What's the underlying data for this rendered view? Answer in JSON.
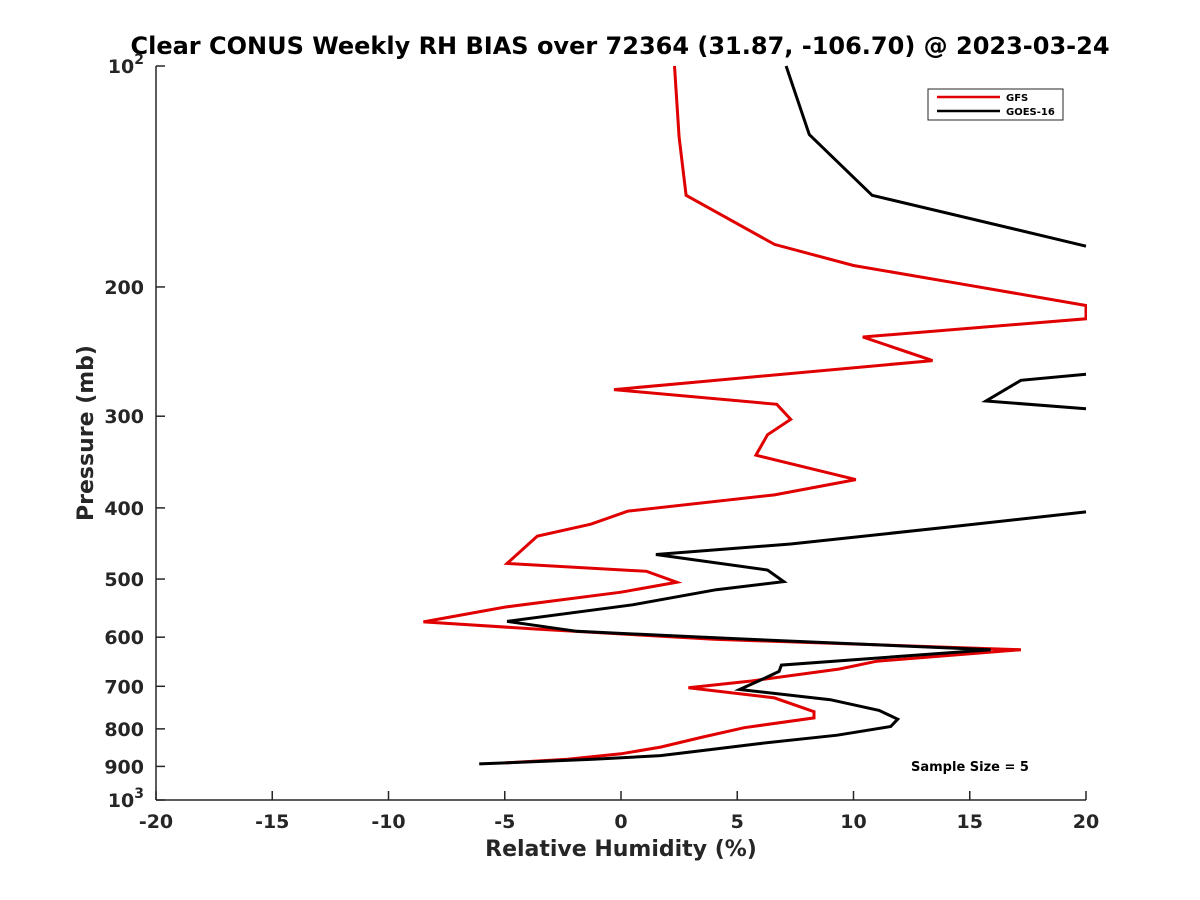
{
  "chart_data": {
    "type": "line",
    "title": "Clear CONUS Weekly RH BIAS over 72364 (31.87, -106.70) @ 2023-03-24",
    "xlabel": "Relative Humidity (%)",
    "ylabel": "Pressure (mb)",
    "xlim": [
      -20,
      20
    ],
    "ylim": [
      100,
      1000
    ],
    "y_scale": "log",
    "y_reversed": true,
    "x_ticks": [
      "-20",
      "-15",
      "-10",
      "-5",
      "0",
      "5",
      "10",
      "15",
      "20"
    ],
    "y_ticks": [
      {
        "value": 100,
        "base": "10",
        "exp": "2"
      },
      {
        "value": 200,
        "label": "200"
      },
      {
        "value": 300,
        "label": "300"
      },
      {
        "value": 400,
        "label": "400"
      },
      {
        "value": 500,
        "label": "500"
      },
      {
        "value": 600,
        "label": "600"
      },
      {
        "value": 700,
        "label": "700"
      },
      {
        "value": 800,
        "label": "800"
      },
      {
        "value": 900,
        "label": "900"
      },
      {
        "value": 1000,
        "base": "10",
        "exp": "3"
      }
    ],
    "grid": false,
    "legend_position": "top-right",
    "annotation": "Sample Size = 5",
    "series": [
      {
        "name": "GFS",
        "color": "#e00000",
        "points": [
          [
            2.3,
            100
          ],
          [
            2.5,
            125
          ],
          [
            2.8,
            150
          ],
          [
            6.6,
            175
          ],
          [
            10,
            187
          ],
          [
            14.6,
            198
          ],
          [
            20,
            212
          ],
          [
            20,
            221
          ],
          [
            10.4,
            234
          ],
          [
            13.4,
            252
          ],
          [
            -0.3,
            276
          ],
          [
            6.7,
            289
          ],
          [
            7.3,
            303
          ],
          [
            6.3,
            318
          ],
          [
            5.8,
            339
          ],
          [
            10.1,
            366
          ],
          [
            6.6,
            384
          ],
          [
            0.3,
            404
          ],
          [
            -1.3,
            421
          ],
          [
            -3.6,
            437
          ],
          [
            -4.9,
            476
          ],
          [
            1.1,
            488
          ],
          [
            2.4,
            505
          ],
          [
            0,
            521
          ],
          [
            -5,
            546
          ],
          [
            -8.5,
            572
          ],
          [
            -3.6,
            585
          ],
          [
            4,
            604
          ],
          [
            17.2,
            624
          ],
          [
            11,
            647
          ],
          [
            9.4,
            663
          ],
          [
            5.5,
            689
          ],
          [
            2.9,
            703
          ],
          [
            6.6,
            726
          ],
          [
            8.3,
            758
          ],
          [
            8.3,
            773
          ],
          [
            5.3,
            797
          ],
          [
            3.5,
            821
          ],
          [
            1.7,
            847
          ],
          [
            0,
            865
          ],
          [
            -2.3,
            880
          ],
          [
            -5,
            890
          ]
        ]
      },
      {
        "name": "GOES-16",
        "color": "#000000",
        "points": [
          [
            7.1,
            100
          ],
          [
            8.1,
            124
          ],
          [
            10.8,
            150
          ],
          [
            18.7,
            172
          ],
          [
            20,
            176
          ],
          [
            null,
            null
          ],
          [
            20,
            263
          ],
          [
            17.2,
            268
          ],
          [
            15.7,
            286
          ],
          [
            20,
            293
          ],
          [
            null,
            null
          ],
          [
            20,
            405
          ],
          [
            14.3,
            424
          ],
          [
            7.3,
            448
          ],
          [
            1.5,
            463
          ],
          [
            6.3,
            486
          ],
          [
            7.0,
            504
          ],
          [
            4.1,
            517
          ],
          [
            0.5,
            542
          ],
          [
            -4.9,
            571
          ],
          [
            -1.9,
            589
          ],
          [
            5,
            603
          ],
          [
            15.9,
            624
          ],
          [
            6.9,
            655
          ],
          [
            6.8,
            668
          ],
          [
            6.2,
            682
          ],
          [
            5.1,
            707
          ],
          [
            9,
            730
          ],
          [
            11.1,
            755
          ],
          [
            11.9,
            776
          ],
          [
            11.6,
            794
          ],
          [
            9.3,
            816
          ],
          [
            5.9,
            838
          ],
          [
            4.1,
            852
          ],
          [
            1.7,
            870
          ],
          [
            -1.2,
            880
          ],
          [
            -6.1,
            893
          ]
        ]
      }
    ]
  }
}
